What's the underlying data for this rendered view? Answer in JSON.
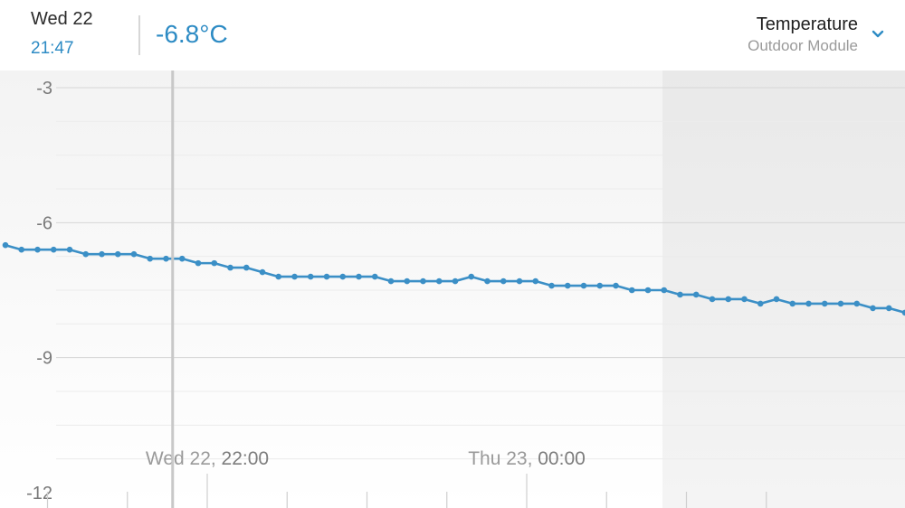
{
  "header": {
    "date": "Wed 22",
    "time": "21:47",
    "value": "-6.8°C",
    "metric": "Temperature",
    "module": "Outdoor Module"
  },
  "colors": {
    "accent": "#2d8bc4",
    "line": "#3b8fc6",
    "cursor": "#c8c8c8",
    "grid_major": "#d6d6d6",
    "grid_minor": "#ececec"
  },
  "chart_data": {
    "type": "line",
    "ylim": [
      -12,
      -3
    ],
    "y_ticks": [
      -3,
      -6,
      -9,
      -12
    ],
    "cursor_time": "21:47",
    "night_shade_from": "00:51",
    "x_tick_labels": [
      {
        "day": "Wed 22,",
        "time": "22:00"
      },
      {
        "day": "Thu 23,",
        "time": "00:00"
      }
    ],
    "series": [
      {
        "values": [
          -6.5,
          -6.6,
          -6.6,
          -6.6,
          -6.6,
          -6.7,
          -6.7,
          -6.7,
          -6.7,
          -6.8,
          -6.8,
          -6.8,
          -6.9,
          -6.9,
          -7.0,
          -7.0,
          -7.1,
          -7.2,
          -7.2,
          -7.2,
          -7.2,
          -7.2,
          -7.2,
          -7.2,
          -7.3,
          -7.3,
          -7.3,
          -7.3,
          -7.3,
          -7.2,
          -7.3,
          -7.3,
          -7.3,
          -7.3,
          -7.4,
          -7.4,
          -7.4,
          -7.4,
          -7.4,
          -7.5,
          -7.5,
          -7.5,
          -7.6,
          -7.6,
          -7.7,
          -7.7,
          -7.7,
          -7.8,
          -7.7,
          -7.8,
          -7.8,
          -7.8,
          -7.8,
          -7.8,
          -7.9,
          -7.9,
          -8.0
        ]
      }
    ]
  }
}
